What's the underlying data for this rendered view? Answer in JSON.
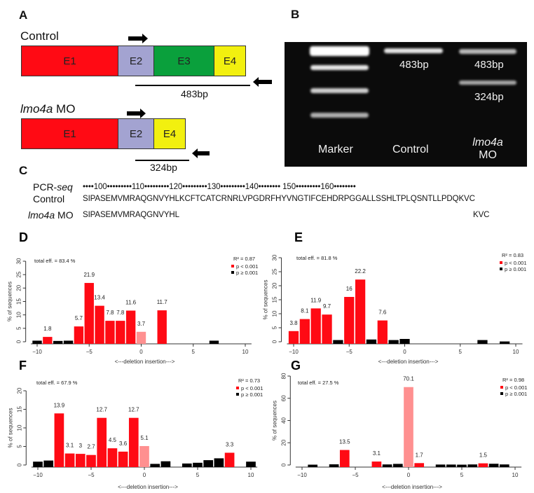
{
  "panel_a": {
    "label": "A",
    "control": {
      "title": "Control",
      "exons": [
        "E1",
        "E2",
        "E3",
        "E4"
      ],
      "product": "483bp"
    },
    "mo": {
      "title_italic": "lmo4a",
      "title_rest": " MO",
      "exons": [
        "E1",
        "E2",
        "E4"
      ],
      "product": "324bp"
    },
    "exon_colors": {
      "E1": "#ff0a14",
      "E2": "#a3a3d1",
      "E3": "#0aa03c",
      "E4": "#f2f00f"
    }
  },
  "panel_b": {
    "label": "B",
    "lanes": [
      {
        "name": "Marker"
      },
      {
        "name": "Control",
        "band_label": "483bp"
      },
      {
        "name_italic": "lmo4a",
        "name_rest": "MO",
        "band_labels": [
          "483bp",
          "324bp"
        ]
      }
    ]
  },
  "panel_c": {
    "label": "C",
    "header_label_plain": "PCR-",
    "header_label_italic": "seq",
    "ruler": "••••100•••••••••110•••••••••120•••••••••130•••••••••140•••••••• 150•••••••••160••••••••",
    "control_label": "Control",
    "control_seq": "SIPASEMVMRAQGNVYHLKCFTCATCRNRLVPGDRFHYVNGTIFCEHDRPGGALLSSHLTPLQSNTLLPDQKVC",
    "mo_label_italic": "lmo4a",
    "mo_label_rest": " MO",
    "mo_seq_start": "SIPASEMVMRAQGNVYHL",
    "mo_seq_end": "KVC"
  },
  "colors": {
    "p_lt": "#ff0a14",
    "p_ge": "#000000",
    "wt": "#ff9090"
  },
  "chart_data": [
    {
      "panel": "D",
      "type": "bar",
      "total_eff": "total eff. = 83.4 %",
      "r2": "R² = 0.87",
      "legend": [
        "p < 0.001",
        "p ≥ 0.001"
      ],
      "legend_placement": "top-right",
      "ylabel": "% of sequences",
      "xlabel": "<---deletion    insertion--->",
      "xlim": [
        -10,
        10
      ],
      "ylim": [
        0,
        30
      ],
      "xticks": [
        -10,
        -5,
        0,
        5,
        10
      ],
      "yticks": [
        0,
        5,
        10,
        15,
        20,
        25,
        30
      ],
      "bars": [
        {
          "x": -10,
          "y": 0.4,
          "g": "p_ge"
        },
        {
          "x": -9,
          "y": 1.8,
          "g": "p_lt",
          "label": "1.8"
        },
        {
          "x": -8,
          "y": 0.3,
          "g": "p_ge"
        },
        {
          "x": -7,
          "y": 0.4,
          "g": "p_ge"
        },
        {
          "x": -6,
          "y": 5.7,
          "g": "p_lt",
          "label": "5.7"
        },
        {
          "x": -5,
          "y": 21.9,
          "g": "p_lt",
          "label": "21.9"
        },
        {
          "x": -4,
          "y": 13.4,
          "g": "p_lt",
          "label": "13.4"
        },
        {
          "x": -3,
          "y": 7.8,
          "g": "p_lt",
          "label": "7.8"
        },
        {
          "x": -2,
          "y": 7.8,
          "g": "p_lt",
          "label": "7.8"
        },
        {
          "x": -1,
          "y": 11.6,
          "g": "p_lt",
          "label": "11.6"
        },
        {
          "x": 0,
          "y": 3.7,
          "g": "wt",
          "label": "3.7"
        },
        {
          "x": 2,
          "y": 11.7,
          "g": "p_lt",
          "label": "11.7"
        },
        {
          "x": 7,
          "y": 0.4,
          "g": "p_ge"
        }
      ]
    },
    {
      "panel": "E",
      "type": "bar",
      "total_eff": "total eff. = 81.8 %",
      "r2": "R² = 0.83",
      "legend": [
        "p < 0.001",
        "p ≥ 0.001"
      ],
      "legend_placement": "top-right",
      "ylabel": "% of sequences",
      "xlabel": "<---deletion    insertion--->",
      "xlim": [
        -10,
        10
      ],
      "ylim": [
        0,
        30
      ],
      "xticks": [
        -10,
        -5,
        0,
        5,
        10
      ],
      "yticks": [
        0,
        5,
        10,
        15,
        20,
        25,
        30
      ],
      "bars": [
        {
          "x": -10,
          "y": 3.8,
          "g": "p_lt",
          "label": "3.8"
        },
        {
          "x": -9,
          "y": 8.1,
          "g": "p_lt",
          "label": "8.1"
        },
        {
          "x": -8,
          "y": 11.9,
          "g": "p_lt",
          "label": "11.9"
        },
        {
          "x": -7,
          "y": 9.7,
          "g": "p_lt",
          "label": "9.7"
        },
        {
          "x": -6,
          "y": 0.6,
          "g": "p_ge"
        },
        {
          "x": -5,
          "y": 16,
          "g": "p_lt",
          "label": "16"
        },
        {
          "x": -4,
          "y": 22.2,
          "g": "p_lt",
          "label": "22.2"
        },
        {
          "x": -3,
          "y": 0.8,
          "g": "p_ge"
        },
        {
          "x": -2,
          "y": 7.6,
          "g": "p_lt",
          "label": "7.6"
        },
        {
          "x": -1,
          "y": 0.6,
          "g": "p_ge"
        },
        {
          "x": 0,
          "y": 1.0,
          "g": "p_ge"
        },
        {
          "x": 7,
          "y": 0.6,
          "g": "p_ge"
        },
        {
          "x": 9,
          "y": 0.1,
          "g": "p_ge"
        }
      ]
    },
    {
      "panel": "F",
      "type": "bar",
      "total_eff": "total eff. = 67.9 %",
      "r2": "R² = 0.73",
      "legend": [
        "p < 0.001",
        "p ≥ 0.001"
      ],
      "legend_placement": "top-right",
      "ylabel": "% of sequences",
      "xlabel": "<---deletion    insertion--->",
      "xlim": [
        -10,
        10
      ],
      "ylim": [
        0,
        20
      ],
      "xticks": [
        -10,
        -5,
        0,
        5,
        10
      ],
      "yticks": [
        0,
        5,
        10,
        15,
        20
      ],
      "bars": [
        {
          "x": -10,
          "y": 0.9,
          "g": "p_ge"
        },
        {
          "x": -9,
          "y": 1.2,
          "g": "p_ge"
        },
        {
          "x": -8,
          "y": 13.9,
          "g": "p_lt",
          "label": "13.9"
        },
        {
          "x": -7,
          "y": 3.1,
          "g": "p_lt",
          "label": "3.1"
        },
        {
          "x": -6,
          "y": 3,
          "g": "p_lt",
          "label": "3"
        },
        {
          "x": -5,
          "y": 2.7,
          "g": "p_lt",
          "label": "2.7"
        },
        {
          "x": -4,
          "y": 12.7,
          "g": "p_lt",
          "label": "12.7"
        },
        {
          "x": -3,
          "y": 4.5,
          "g": "p_lt",
          "label": "4.5"
        },
        {
          "x": -2,
          "y": 3.6,
          "g": "p_lt",
          "label": "3.6"
        },
        {
          "x": -1,
          "y": 12.7,
          "g": "p_lt",
          "label": "12.7"
        },
        {
          "x": 0,
          "y": 5.1,
          "g": "wt",
          "label": "5.1"
        },
        {
          "x": 1,
          "y": 0.3,
          "g": "p_ge"
        },
        {
          "x": 2,
          "y": 1.0,
          "g": "p_ge"
        },
        {
          "x": 4,
          "y": 0.4,
          "g": "p_ge"
        },
        {
          "x": 5,
          "y": 0.6,
          "g": "p_ge"
        },
        {
          "x": 6,
          "y": 1.3,
          "g": "p_ge"
        },
        {
          "x": 7,
          "y": 1.8,
          "g": "p_ge"
        },
        {
          "x": 8,
          "y": 3.3,
          "g": "p_lt",
          "label": "3.3"
        },
        {
          "x": 10,
          "y": 0.9,
          "g": "p_ge"
        }
      ]
    },
    {
      "panel": "G",
      "type": "bar",
      "total_eff": "total eff. = 27.5 %",
      "r2": "R² = 0.98",
      "legend": [
        "p < 0.001",
        "p ≥ 0.001"
      ],
      "legend_placement": "top-right",
      "ylabel": "% of sequences",
      "xlabel": "<---deletion    insertion--->",
      "xlim": [
        -10,
        10
      ],
      "ylim": [
        0,
        80
      ],
      "xticks": [
        -10,
        -5,
        0,
        5,
        10
      ],
      "yticks": [
        0,
        20,
        40,
        60,
        80
      ],
      "bars": [
        {
          "x": -9,
          "y": 0.3,
          "g": "p_ge"
        },
        {
          "x": -7,
          "y": 0.6,
          "g": "p_ge"
        },
        {
          "x": -6,
          "y": 13.5,
          "g": "p_lt",
          "label": "13.5"
        },
        {
          "x": -3,
          "y": 3.1,
          "g": "p_lt",
          "label": "3.1"
        },
        {
          "x": -2,
          "y": 0.5,
          "g": "p_ge"
        },
        {
          "x": -1,
          "y": 1.0,
          "g": "p_ge"
        },
        {
          "x": 0,
          "y": 70.1,
          "g": "wt",
          "label": "70.1"
        },
        {
          "x": 1,
          "y": 1.7,
          "g": "p_lt",
          "label": "1.7"
        },
        {
          "x": 3,
          "y": 0.4,
          "g": "p_ge"
        },
        {
          "x": 4,
          "y": 0.4,
          "g": "p_ge"
        },
        {
          "x": 5,
          "y": 0.3,
          "g": "p_ge"
        },
        {
          "x": 6,
          "y": 0.5,
          "g": "p_ge"
        },
        {
          "x": 7,
          "y": 1.5,
          "g": "p_lt",
          "label": "1.5"
        },
        {
          "x": 8,
          "y": 1.1,
          "g": "p_ge"
        },
        {
          "x": 9,
          "y": 0.5,
          "g": "p_ge"
        }
      ]
    }
  ]
}
